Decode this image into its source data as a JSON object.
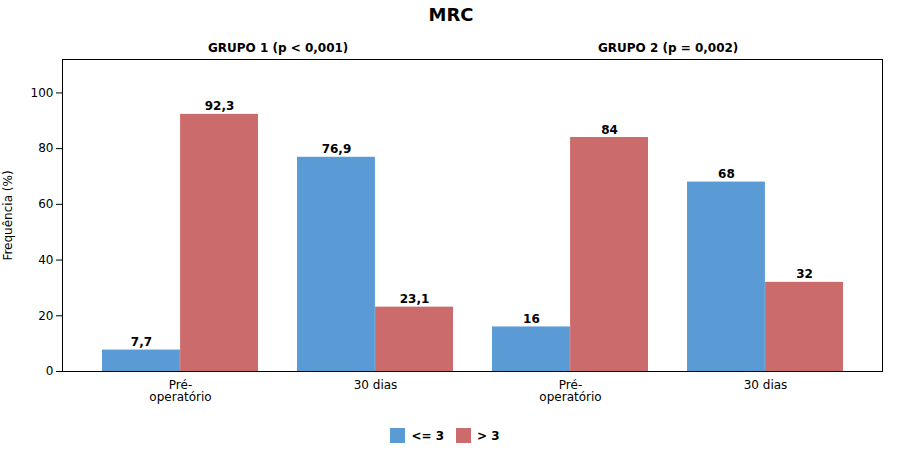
{
  "chart_data": {
    "type": "bar",
    "title": "MRC",
    "ylabel": "Frequência (%)",
    "categories": [
      "Pré-\noperatório",
      "30 dias",
      "Pré-\noperatório",
      "30 dias"
    ],
    "series": [
      {
        "name": "<= 3",
        "color": "#5B9BD5",
        "values": [
          7.7,
          76.9,
          16,
          68
        ],
        "value_labels": [
          "7,7",
          "76,9",
          "16",
          "68"
        ]
      },
      {
        "name": "> 3",
        "color": "#CC6B6B",
        "values": [
          92.3,
          23.1,
          84,
          32
        ],
        "value_labels": [
          "92,3",
          "23,1",
          "84",
          "32"
        ]
      }
    ],
    "ylim": [
      0,
      112
    ],
    "yticks": [
      0,
      20,
      40,
      60,
      80,
      100
    ],
    "grid": false,
    "legend": "bottom",
    "data_labels": true,
    "annotations": [
      "GRUPO 1 (p < 0,001)",
      "GRUPO 2 (p = 0,002)"
    ]
  }
}
